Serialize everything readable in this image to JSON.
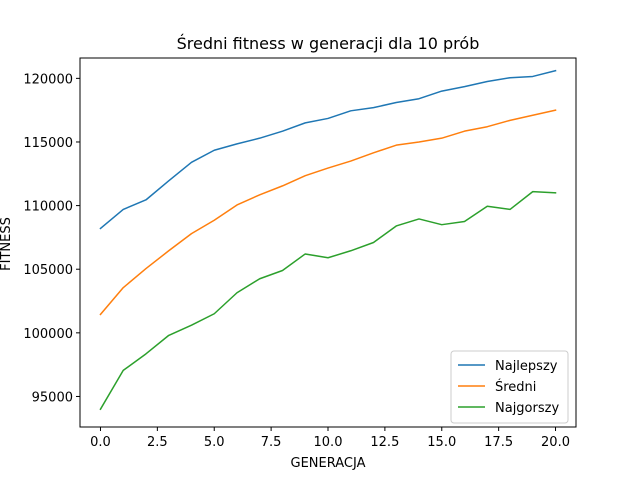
{
  "chart_data": {
    "type": "line",
    "title": "Średni fitness w generacji dla 10 prób",
    "xlabel": "GENERACJA",
    "ylabel": "FITNESS",
    "xlim": [
      -0.9,
      20.9
    ],
    "ylim": [
      92600,
      121600
    ],
    "xticks": [
      0.0,
      2.5,
      5.0,
      7.5,
      10.0,
      12.5,
      15.0,
      17.5,
      20.0
    ],
    "xtick_labels": [
      "0.0",
      "2.5",
      "5.0",
      "7.5",
      "10.0",
      "12.5",
      "15.0",
      "17.5",
      "20.0"
    ],
    "yticks": [
      95000,
      100000,
      105000,
      110000,
      115000,
      120000
    ],
    "ytick_labels": [
      "95000",
      "100000",
      "105000",
      "110000",
      "115000",
      "120000"
    ],
    "grid": false,
    "legend_position": "lower-right",
    "x": [
      0,
      1,
      2,
      3,
      4,
      5,
      6,
      7,
      8,
      9,
      10,
      11,
      12,
      13,
      14,
      15,
      16,
      17,
      18,
      19,
      20
    ],
    "series": [
      {
        "name": "Najlepszy",
        "color": "#1f77b4",
        "values": [
          108200,
          109700,
          110450,
          111950,
          113400,
          114350,
          114850,
          115300,
          115850,
          116500,
          116850,
          117450,
          117700,
          118100,
          118400,
          119000,
          119350,
          119750,
          120050,
          120150,
          120600
        ]
      },
      {
        "name": "Średni",
        "color": "#ff7f0e",
        "values": [
          101450,
          103550,
          105050,
          106450,
          107800,
          108850,
          110050,
          110850,
          111550,
          112350,
          112950,
          113500,
          114150,
          114750,
          115000,
          115300,
          115850,
          116200,
          116700,
          117100,
          117500
        ]
      },
      {
        "name": "Najgorszy",
        "color": "#2ca02c",
        "values": [
          94000,
          97050,
          98350,
          99800,
          100600,
          101500,
          103150,
          104250,
          104900,
          106200,
          105900,
          106450,
          107100,
          108400,
          108950,
          108500,
          108750,
          109950,
          109700,
          111100,
          111000
        ]
      }
    ]
  }
}
